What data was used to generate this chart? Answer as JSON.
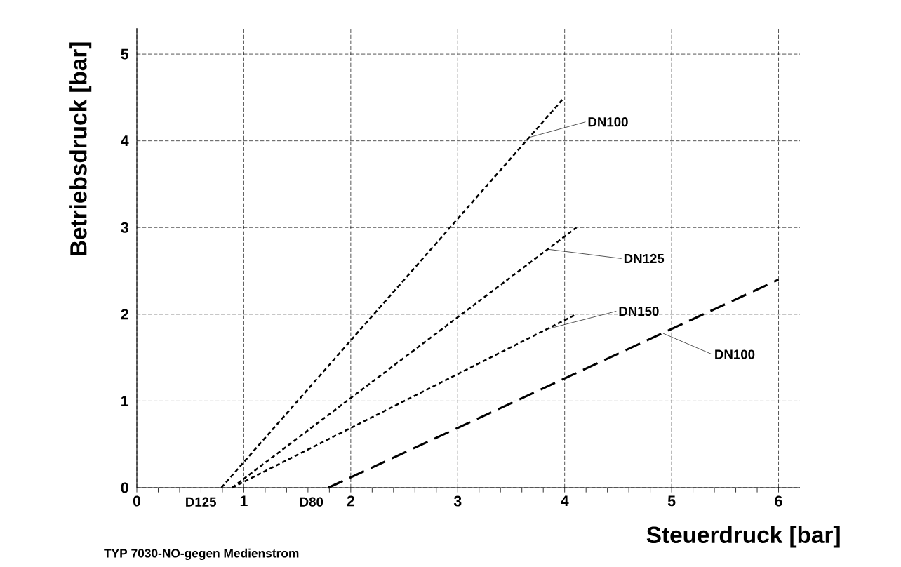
{
  "chart_data": {
    "type": "line",
    "xlabel": "Steuerdruck [bar]",
    "ylabel": "Betriebsdruck [bar]",
    "xlim": [
      0,
      6.2
    ],
    "ylim": [
      0,
      5.3
    ],
    "xticks": [
      0,
      1,
      2,
      3,
      4,
      5,
      6
    ],
    "yticks": [
      0,
      1,
      2,
      3,
      4,
      5
    ],
    "grid": true,
    "series": [
      {
        "color": "#000000",
        "line_style": "dotted",
        "x": [
          0.79,
          3.99
        ],
        "values": [
          0,
          4.49
        ]
      },
      {
        "color": "#000000",
        "line_style": "dotted",
        "x": [
          0.89,
          4.11
        ],
        "values": [
          0,
          3.0
        ]
      },
      {
        "color": "#000000",
        "line_style": "dotted",
        "x": [
          0.89,
          4.11
        ],
        "values": [
          0,
          2.0
        ]
      },
      {
        "color": "#000000",
        "line_style": "dashed",
        "x": [
          1.79,
          6.0
        ],
        "values": [
          0,
          2.4
        ]
      }
    ],
    "annotations": [
      "TYP 7030-NO-gegen Medienstrom",
      {
        "text": "D125",
        "x": 0.79,
        "y": 0
      },
      {
        "text": "D80",
        "x": 1.79,
        "y": 0
      },
      {
        "text": "DN100",
        "x": 3.67,
        "y": 4.04
      },
      {
        "text": "DN125",
        "x": 3.84,
        "y": 2.75
      },
      {
        "text": "DN150",
        "x": 3.84,
        "y": 1.83
      },
      {
        "text": "DN100",
        "x": 4.92,
        "y": 1.78
      }
    ]
  }
}
